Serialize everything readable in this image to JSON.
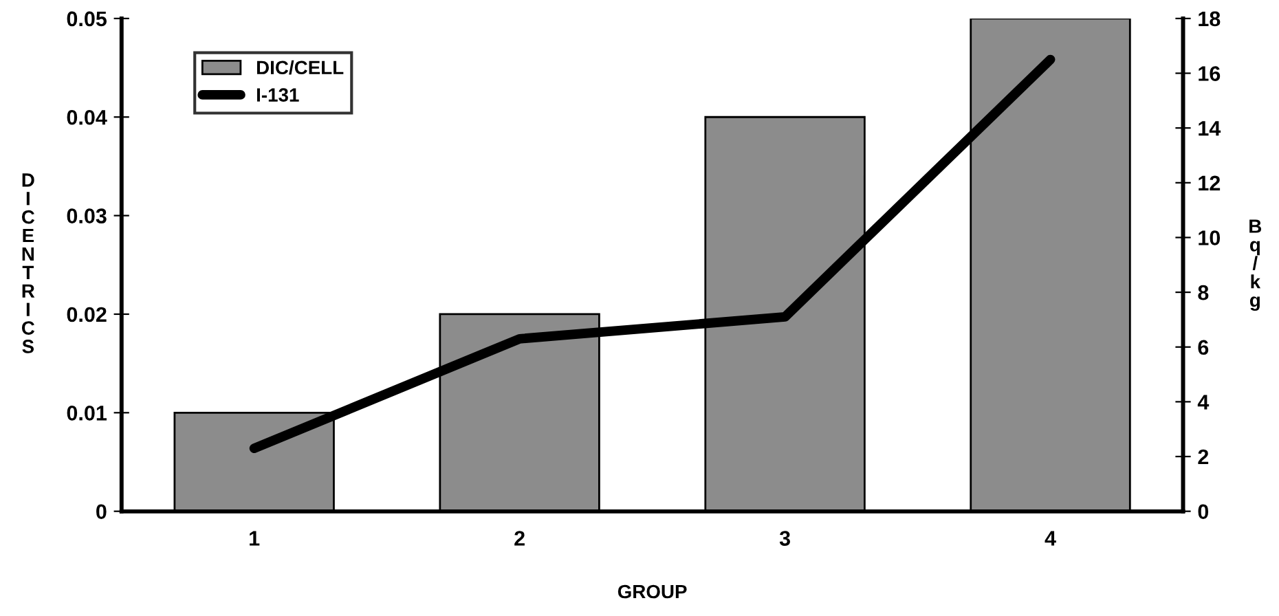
{
  "chart_data": {
    "type": "bar",
    "xlabel": "GROUP",
    "ylabel": "DICENTRICS",
    "y2label": "Bq/kg",
    "categories": [
      "1",
      "2",
      "3",
      "4"
    ],
    "series": [
      {
        "name": "DIC/CELL",
        "color": "#8c8c8c",
        "values": [
          0.01,
          0.02,
          0.04,
          0.05
        ]
      },
      {
        "name": "I-131",
        "type": "line",
        "axis": "y2",
        "color": "#000000",
        "values": [
          2.3,
          6.3,
          7.1,
          16.5
        ]
      }
    ],
    "ylim": [
      0,
      0.05
    ],
    "yticks": [
      0,
      0.01,
      0.02,
      0.03,
      0.04,
      0.05
    ],
    "y2lim": [
      0,
      18
    ],
    "y2ticks": [
      0,
      2,
      4,
      6,
      8,
      10,
      12,
      14,
      16,
      18
    ],
    "legend": "top left",
    "grid": false
  }
}
